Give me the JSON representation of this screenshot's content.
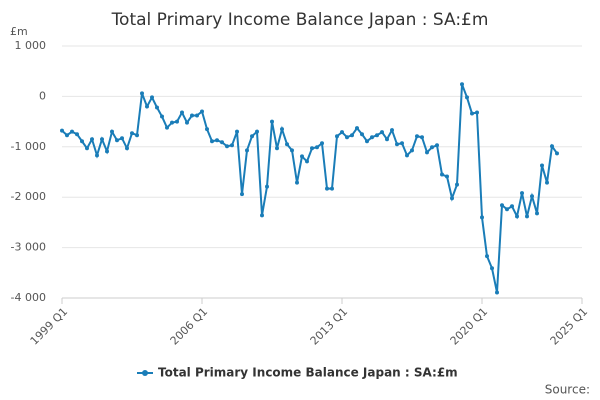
{
  "chart_data": {
    "type": "line",
    "title": "Total Primary Income Balance Japan : SA:£m",
    "y_label": "£m",
    "source": "Source:",
    "x": [
      "1999 Q1",
      "1999 Q2",
      "1999 Q3",
      "1999 Q4",
      "2000 Q1",
      "2000 Q2",
      "2000 Q3",
      "2000 Q4",
      "2001 Q1",
      "2001 Q2",
      "2001 Q3",
      "2001 Q4",
      "2002 Q1",
      "2002 Q2",
      "2002 Q3",
      "2002 Q4",
      "2003 Q1",
      "2003 Q2",
      "2003 Q3",
      "2003 Q4",
      "2004 Q1",
      "2004 Q2",
      "2004 Q3",
      "2004 Q4",
      "2005 Q1",
      "2005 Q2",
      "2005 Q3",
      "2005 Q4",
      "2006 Q1",
      "2006 Q2",
      "2006 Q3",
      "2006 Q4",
      "2007 Q1",
      "2007 Q2",
      "2007 Q3",
      "2007 Q4",
      "2008 Q1",
      "2008 Q2",
      "2008 Q3",
      "2008 Q4",
      "2009 Q1",
      "2009 Q2",
      "2009 Q3",
      "2009 Q4",
      "2010 Q1",
      "2010 Q2",
      "2010 Q3",
      "2010 Q4",
      "2011 Q1",
      "2011 Q2",
      "2011 Q3",
      "2011 Q4",
      "2012 Q1",
      "2012 Q2",
      "2012 Q3",
      "2012 Q4",
      "2013 Q1",
      "2013 Q2",
      "2013 Q3",
      "2013 Q4",
      "2014 Q1",
      "2014 Q2",
      "2014 Q3",
      "2014 Q4",
      "2015 Q1",
      "2015 Q2",
      "2015 Q3",
      "2015 Q4",
      "2016 Q1",
      "2016 Q2",
      "2016 Q3",
      "2016 Q4",
      "2017 Q1",
      "2017 Q2",
      "2017 Q3",
      "2017 Q4",
      "2018 Q1",
      "2018 Q2",
      "2018 Q3",
      "2018 Q4",
      "2019 Q1",
      "2019 Q2",
      "2019 Q3",
      "2019 Q4",
      "2020 Q1",
      "2020 Q2",
      "2020 Q3",
      "2020 Q4",
      "2021 Q1",
      "2021 Q2",
      "2021 Q3",
      "2021 Q4",
      "2022 Q1",
      "2022 Q2",
      "2022 Q3",
      "2022 Q4",
      "2023 Q1",
      "2023 Q2",
      "2023 Q3",
      "2023 Q4"
    ],
    "series": [
      {
        "name": "Total Primary Income Balance Japan : SA:£m",
        "color": "#1a7db8",
        "values": [
          -680,
          -770,
          -700,
          -750,
          -890,
          -1030,
          -850,
          -1170,
          -850,
          -1090,
          -700,
          -870,
          -830,
          -1030,
          -730,
          -770,
          60,
          -200,
          -20,
          -220,
          -400,
          -620,
          -520,
          -500,
          -320,
          -520,
          -380,
          -380,
          -300,
          -650,
          -890,
          -870,
          -910,
          -990,
          -970,
          -700,
          -1940,
          -1070,
          -790,
          -700,
          -2360,
          -1790,
          -500,
          -1030,
          -650,
          -950,
          -1070,
          -1710,
          -1190,
          -1290,
          -1030,
          -1010,
          -930,
          -1830,
          -1830,
          -790,
          -710,
          -810,
          -770,
          -630,
          -750,
          -890,
          -810,
          -770,
          -710,
          -850,
          -670,
          -950,
          -930,
          -1170,
          -1070,
          -790,
          -810,
          -1110,
          -1010,
          -970,
          -1550,
          -1590,
          -2020,
          -1750,
          240,
          -20,
          -340,
          -320,
          -2400,
          -3170,
          -3410,
          -3890,
          -2160,
          -2240,
          -2180,
          -2380,
          -1920,
          -2380,
          -1980,
          -2320,
          -1370,
          -1710,
          -990,
          -1130
        ]
      }
    ],
    "xticks": [
      "1999 Q1",
      "2006 Q1",
      "2013 Q1",
      "2020 Q1",
      "2025 Q1"
    ],
    "ylim": [
      -4000,
      1000
    ],
    "yticks": [
      {
        "value": -4000,
        "label": "-4 000"
      },
      {
        "value": -3000,
        "label": "-3 000"
      },
      {
        "value": -2000,
        "label": "-2 000"
      },
      {
        "value": -1000,
        "label": "-1 000"
      },
      0,
      {
        "value": 1000,
        "label": "1 000"
      }
    ],
    "grid": true
  }
}
